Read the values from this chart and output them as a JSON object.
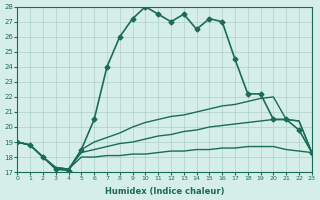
{
  "xlabel": "Humidex (Indice chaleur)",
  "ylabel": "",
  "background_color": "#d6eee8",
  "grid_color": "#b0d0c8",
  "line_color": "#1a6b5a",
  "xlim": [
    0,
    23
  ],
  "ylim": [
    17,
    28
  ],
  "xticks": [
    0,
    1,
    2,
    3,
    4,
    5,
    6,
    7,
    8,
    9,
    10,
    11,
    12,
    13,
    14,
    15,
    16,
    17,
    18,
    19,
    20,
    21,
    22,
    23
  ],
  "yticks": [
    17,
    18,
    19,
    20,
    21,
    22,
    23,
    24,
    25,
    26,
    27,
    28
  ],
  "series": [
    {
      "x": [
        0,
        1,
        2,
        3,
        4,
        5,
        6,
        7,
        8,
        9,
        10,
        11,
        12,
        13,
        14,
        15,
        16,
        17,
        18,
        19,
        20,
        21,
        22,
        23
      ],
      "y": [
        19.0,
        18.8,
        18.0,
        17.2,
        17.1,
        18.5,
        20.5,
        24.0,
        26.0,
        27.2,
        28.0,
        27.5,
        27.0,
        27.5,
        26.5,
        27.2,
        27.0,
        24.5,
        22.2,
        22.2,
        20.5,
        20.5,
        19.8,
        18.3
      ],
      "marker": "D",
      "markersize": 2.5,
      "linewidth": 1.2
    },
    {
      "x": [
        0,
        1,
        2,
        3,
        4,
        5,
        6,
        7,
        8,
        9,
        10,
        11,
        12,
        13,
        14,
        15,
        16,
        17,
        18,
        19,
        20,
        21,
        22,
        23
      ],
      "y": [
        19.0,
        18.8,
        18.0,
        17.3,
        17.2,
        18.5,
        19.0,
        19.3,
        19.6,
        20.0,
        20.3,
        20.5,
        20.7,
        20.8,
        21.0,
        21.2,
        21.4,
        21.5,
        21.7,
        21.9,
        22.0,
        20.5,
        20.4,
        18.3
      ],
      "marker": null,
      "markersize": 0,
      "linewidth": 1.0
    },
    {
      "x": [
        0,
        1,
        2,
        3,
        4,
        5,
        6,
        7,
        8,
        9,
        10,
        11,
        12,
        13,
        14,
        15,
        16,
        17,
        18,
        19,
        20,
        21,
        22,
        23
      ],
      "y": [
        19.0,
        18.8,
        18.0,
        17.3,
        17.2,
        18.3,
        18.5,
        18.7,
        18.9,
        19.0,
        19.2,
        19.4,
        19.5,
        19.7,
        19.8,
        20.0,
        20.1,
        20.2,
        20.3,
        20.4,
        20.5,
        20.5,
        20.4,
        18.3
      ],
      "marker": null,
      "markersize": 0,
      "linewidth": 1.0
    },
    {
      "x": [
        0,
        1,
        2,
        3,
        4,
        5,
        6,
        7,
        8,
        9,
        10,
        11,
        12,
        13,
        14,
        15,
        16,
        17,
        18,
        19,
        20,
        21,
        22,
        23
      ],
      "y": [
        19.0,
        18.8,
        18.0,
        17.3,
        17.2,
        18.0,
        18.0,
        18.1,
        18.1,
        18.2,
        18.2,
        18.3,
        18.4,
        18.4,
        18.5,
        18.5,
        18.6,
        18.6,
        18.7,
        18.7,
        18.7,
        18.5,
        18.4,
        18.3
      ],
      "marker": null,
      "markersize": 0,
      "linewidth": 1.0
    }
  ]
}
